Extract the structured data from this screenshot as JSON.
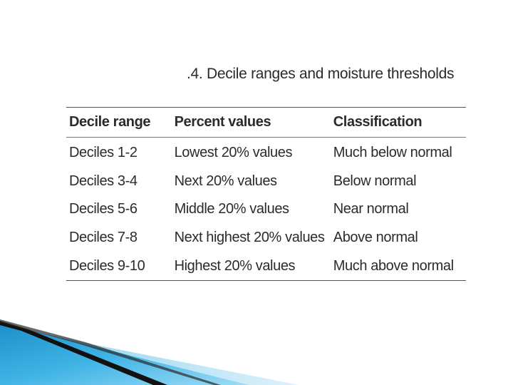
{
  "caption": ".4. Decile ranges and moisture thresholds",
  "table": {
    "headers": [
      "Decile range",
      "Percent values",
      "Classification"
    ],
    "rows": [
      [
        "Deciles 1-2",
        "Lowest 20% values",
        "Much below normal"
      ],
      [
        "Deciles 3-4",
        "Next 20% values",
        "Below normal"
      ],
      [
        "Deciles 5-6",
        "Middle 20% values",
        "Near normal"
      ],
      [
        "Deciles 7-8",
        "Next highest 20% values",
        "Above normal"
      ],
      [
        "Deciles 9-10",
        "Highest 20% values",
        "Much above normal"
      ]
    ]
  },
  "colors": {
    "text": "#2b2b2b",
    "rule": "#555555",
    "accent_blue": "#2a9fd6",
    "accent_light_blue": "#8fd3f0",
    "accent_dark": "#111111"
  }
}
